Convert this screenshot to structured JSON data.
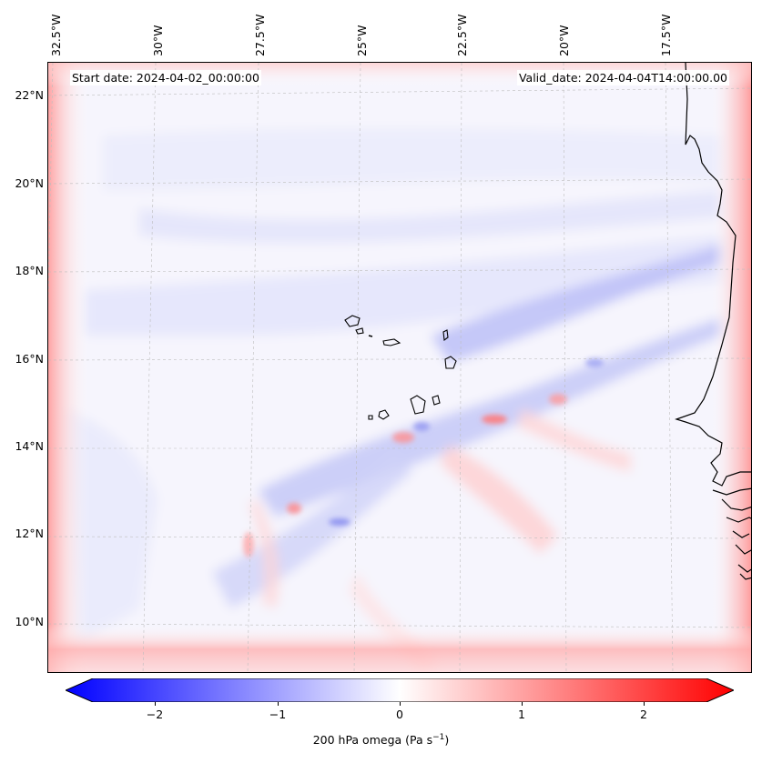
{
  "map": {
    "start_date": "Start date: 2024-04-02_00:00:00",
    "valid_date": "Valid_date: 2024-04-04T14:00:00.00",
    "lon_labels": [
      "32.5°W",
      "30°W",
      "27.5°W",
      "25°W",
      "22.5°W",
      "20°W",
      "17.5°W"
    ],
    "lat_labels": [
      "22°N",
      "20°N",
      "18°N",
      "16°N",
      "14°N",
      "12°N",
      "10°N"
    ],
    "colors": {
      "negative": "#0000ff",
      "zero": "#ffffff",
      "positive": "#ff0000",
      "coast": "#000000"
    }
  },
  "colorbar": {
    "ticks": [
      "−2",
      "−1",
      "0",
      "1",
      "2"
    ],
    "label": "200 hPa omega (Pa s",
    "label_sup": "−1",
    "label_end": ")",
    "min": -2.7,
    "max": 2.7
  }
}
